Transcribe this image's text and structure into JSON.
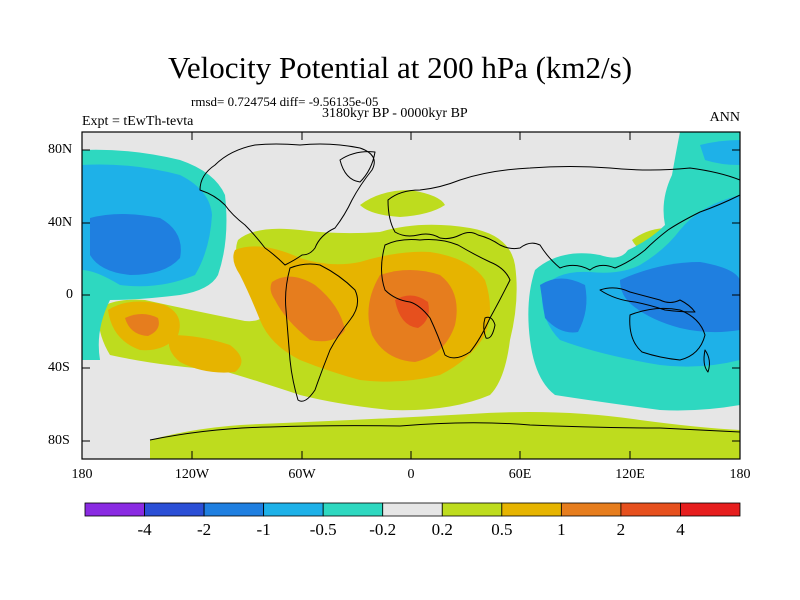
{
  "title": "Velocity Potential at 200 hPa (km2/s)",
  "stats": "rmsd= 0.724754  diff= -9.56135e-05",
  "period": "3180kyr BP - 0000kyr BP",
  "experiment": "Expt = tEwTh-tevta",
  "season": "ANN",
  "lat_labels": [
    "80N",
    "40N",
    "0",
    "40S",
    "80S"
  ],
  "lon_labels": [
    "180",
    "120W",
    "60W",
    "0",
    "60E",
    "120E",
    "180"
  ],
  "colorbar": {
    "labels": [
      "-4",
      "-2",
      "-1",
      "-0.5",
      "-0.2",
      "0.2",
      "0.5",
      "1",
      "2",
      "4"
    ],
    "colors": [
      "#8a2be2",
      "#2b4fd6",
      "#1f7fe0",
      "#1eb1e8",
      "#2ed8c0",
      "#e6e6e6",
      "#bedc1e",
      "#e6b400",
      "#e67d1e",
      "#e6501e",
      "#e61e1e"
    ]
  },
  "colors": {
    "neutral": "#e6e6e6",
    "coast": "#000000"
  }
}
